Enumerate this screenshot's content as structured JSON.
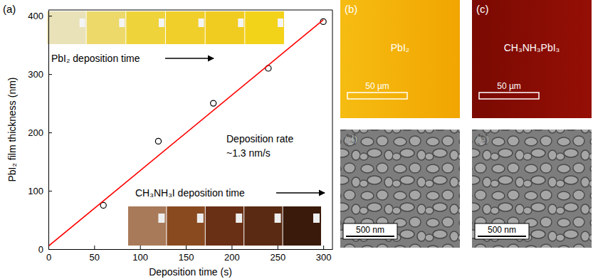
{
  "chart_data": {
    "type": "scatter",
    "panel_label": "(a)",
    "x_label": "Deposition time (s)",
    "y_label": "PbI₂ film thickness (nm)",
    "annotations": [
      "PbI₂ deposition time",
      "Deposition rate",
      "~1.3 nm/s",
      "CH₃NH₃I deposition time"
    ],
    "series": [
      {
        "type": "scatter",
        "marker": "circle",
        "color": "#000000",
        "x": [
          60,
          120,
          180,
          240,
          300
        ],
        "values": [
          75,
          185,
          250,
          310,
          390
        ]
      },
      {
        "type": "line",
        "line_style": "solid",
        "color": "#ff0000",
        "x": [
          0,
          300
        ],
        "values": [
          5,
          393
        ]
      }
    ],
    "xlim": [
      0,
      310
    ],
    "xticks": [
      0,
      50,
      100,
      150,
      200,
      250,
      300
    ],
    "ylim": [
      0,
      410
    ],
    "yticks": [
      0,
      100,
      200,
      300,
      400
    ],
    "grid": false
  },
  "panels": [
    {
      "label": "(b)",
      "text": "PbI₂",
      "scale_bar": "50 µm"
    },
    {
      "label": "(c)",
      "text": "CH₃NH₃PbI₃",
      "scale_bar": "50 µm"
    },
    {
      "label": "(d)",
      "scale_bar": "500 nm"
    },
    {
      "label": "(e)",
      "scale_bar": "500 nm"
    }
  ]
}
